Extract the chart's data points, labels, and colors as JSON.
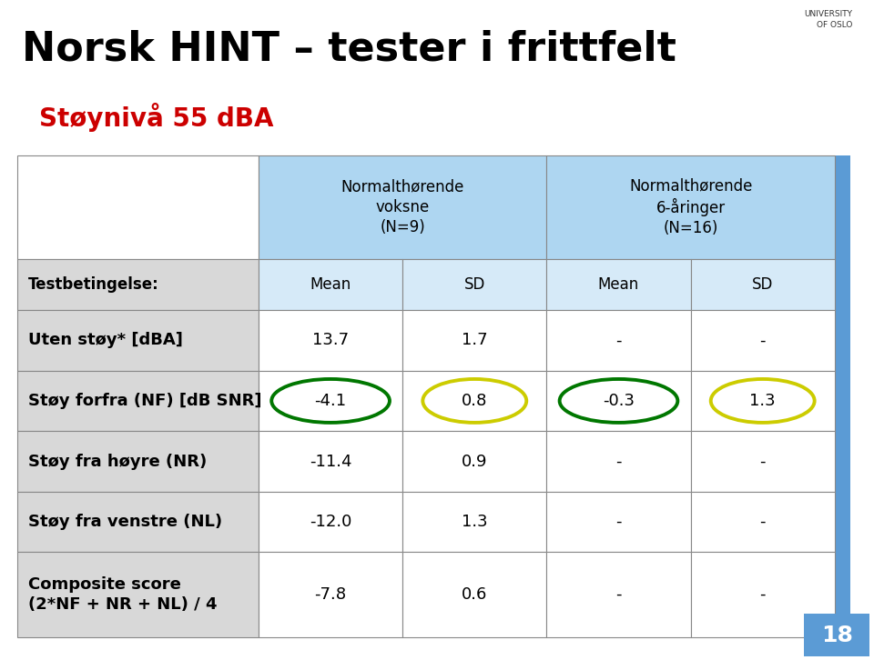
{
  "title": "Norsk HINT – tester i frittfelt",
  "subtitle": "Støynivå 55 dBA",
  "subtitle_color": "#cc0000",
  "bg_color": "#ffffff",
  "col_header1_text": "Normalthørende\nvoksne\n(N=9)",
  "col_header2_text": "Normalthørende\n6-åringer\n(N=16)",
  "subheaders": [
    "Mean",
    "SD",
    "Mean",
    "SD"
  ],
  "row_labels": [
    "Testbetingelse:",
    "Uten støy* [dBA]",
    "Støy forfra (NF) [dB SNR]",
    "Støy fra høyre (NR)",
    "Støy fra venstre (NL)",
    "Composite score\n(2*NF + NR + NL) / 4"
  ],
  "table_data": [
    [
      "13.7",
      "1.7",
      "-",
      "-"
    ],
    [
      "-4.1",
      "0.8",
      "-0.3",
      "1.3"
    ],
    [
      "-11.4",
      "0.9",
      "-",
      "-"
    ],
    [
      "-12.0",
      "1.3",
      "-",
      "-"
    ],
    [
      "-7.8",
      "0.6",
      "-",
      "-"
    ]
  ],
  "header_bg": "#aed6f1",
  "subheader_bg": "#d6eaf8",
  "label_col_bg": "#d8d8d8",
  "data_cell_bg": "#ffffff",
  "border_color": "#888888",
  "ellipse_color_green": "#007700",
  "ellipse_color_yellow": "#cccc00",
  "page_number": "18",
  "page_num_bg": "#5b9bd5",
  "right_border_bg": "#5b9bd5",
  "title_fontsize": 32,
  "subtitle_fontsize": 20,
  "header_fontsize": 12,
  "cell_fontsize": 13
}
